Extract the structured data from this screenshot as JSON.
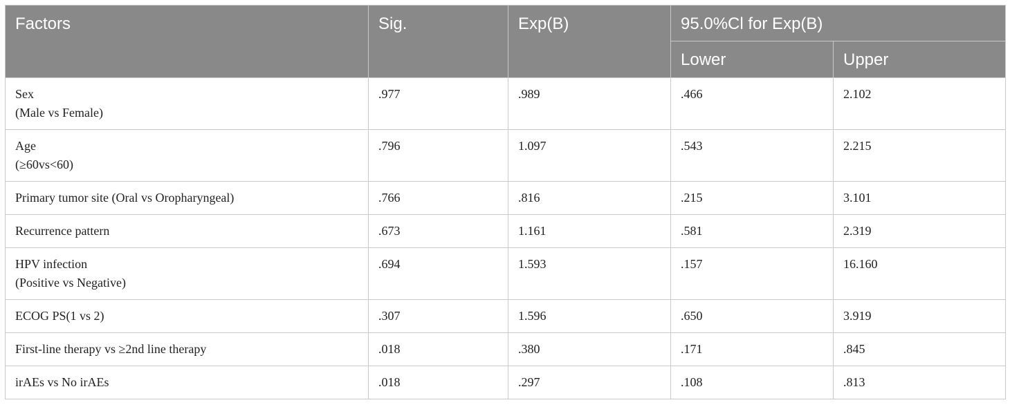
{
  "header": {
    "factors": "Factors",
    "sig": "Sig.",
    "expb": "Exp(B)",
    "ci": "95.0%Cl for Exp(B)",
    "lower": "Lower",
    "upper": "Upper"
  },
  "rows": [
    {
      "factor_line1": "Sex",
      "factor_line2": "(Male vs Female)",
      "sig": ".977",
      "expb": ".989",
      "lower": ".466",
      "upper": "2.102"
    },
    {
      "factor_line1": "Age",
      "factor_line2": "(≥60vs<60)",
      "sig": ".796",
      "expb": "1.097",
      "lower": ".543",
      "upper": "2.215"
    },
    {
      "factor_line1": "Primary tumor site (Oral vs Oropharyngeal)",
      "sig": ".766",
      "expb": ".816",
      "lower": ".215",
      "upper": "3.101"
    },
    {
      "factor_line1": "Recurrence pattern",
      "sig": ".673",
      "expb": "1.161",
      "lower": ".581",
      "upper": "2.319"
    },
    {
      "factor_line1": "HPV infection",
      "factor_line2": "(Positive vs Negative)",
      "sig": ".694",
      "expb": "1.593",
      "lower": ".157",
      "upper": "16.160"
    },
    {
      "factor_line1": "ECOG PS(1 vs 2)",
      "sig": ".307",
      "expb": "1.596",
      "lower": ".650",
      "upper": "3.919"
    },
    {
      "factor_line1": "First-line therapy vs ≥2nd line therapy",
      "sig": ".018",
      "expb": ".380",
      "lower": ".171",
      "upper": ".845"
    },
    {
      "factor_line1": "irAEs vs No irAEs",
      "sig": ".018",
      "expb": ".297",
      "lower": ".108",
      "upper": ".813"
    }
  ]
}
